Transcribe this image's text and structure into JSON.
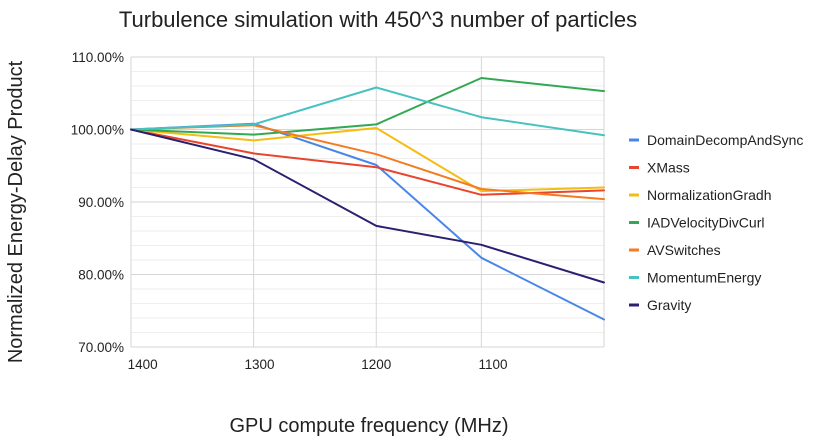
{
  "chart_data": {
    "type": "line",
    "title": "Turbulence simulation with 450^3 number of particles",
    "xlabel": "GPU compute frequency (MHz)",
    "ylabel": "Normalized Energy-Delay Product",
    "x": [
      1410,
      1305,
      1200,
      1110,
      1005
    ],
    "xlim": [
      1410,
      1005
    ],
    "xticks": [
      1400,
      1300,
      1200,
      1100
    ],
    "xtick_labels": [
      "1400",
      "1300",
      "1200",
      "1100"
    ],
    "ylim": [
      70,
      110
    ],
    "yticks": [
      70,
      80,
      90,
      100,
      110
    ],
    "ytick_labels": [
      "70.00%",
      "80.00%",
      "90.00%",
      "100.00%",
      "110.00%"
    ],
    "grid": true,
    "legend_position": "right",
    "series": [
      {
        "name": "DomainDecompAndSync",
        "color": "#4a86e8",
        "values": [
          100.0,
          100.8,
          95.1,
          82.3,
          73.8
        ]
      },
      {
        "name": "XMass",
        "color": "#e8452e",
        "values": [
          100.0,
          96.7,
          94.8,
          91.0,
          91.6
        ]
      },
      {
        "name": "NormalizationGradh",
        "color": "#f4bd14",
        "values": [
          100.0,
          98.5,
          100.2,
          91.5,
          92.0
        ]
      },
      {
        "name": "IADVelocityDivCurl",
        "color": "#33a853",
        "values": [
          100.0,
          99.3,
          100.7,
          107.1,
          105.3
        ]
      },
      {
        "name": "AVSwitches",
        "color": "#f47b20",
        "values": [
          100.0,
          100.6,
          96.6,
          91.8,
          90.4
        ]
      },
      {
        "name": "MomentumEnergy",
        "color": "#48c2c0",
        "values": [
          100.0,
          100.7,
          105.8,
          101.7,
          99.2
        ]
      },
      {
        "name": "Gravity",
        "color": "#2b2070",
        "values": [
          100.0,
          95.9,
          86.7,
          84.1,
          78.9
        ]
      }
    ]
  }
}
